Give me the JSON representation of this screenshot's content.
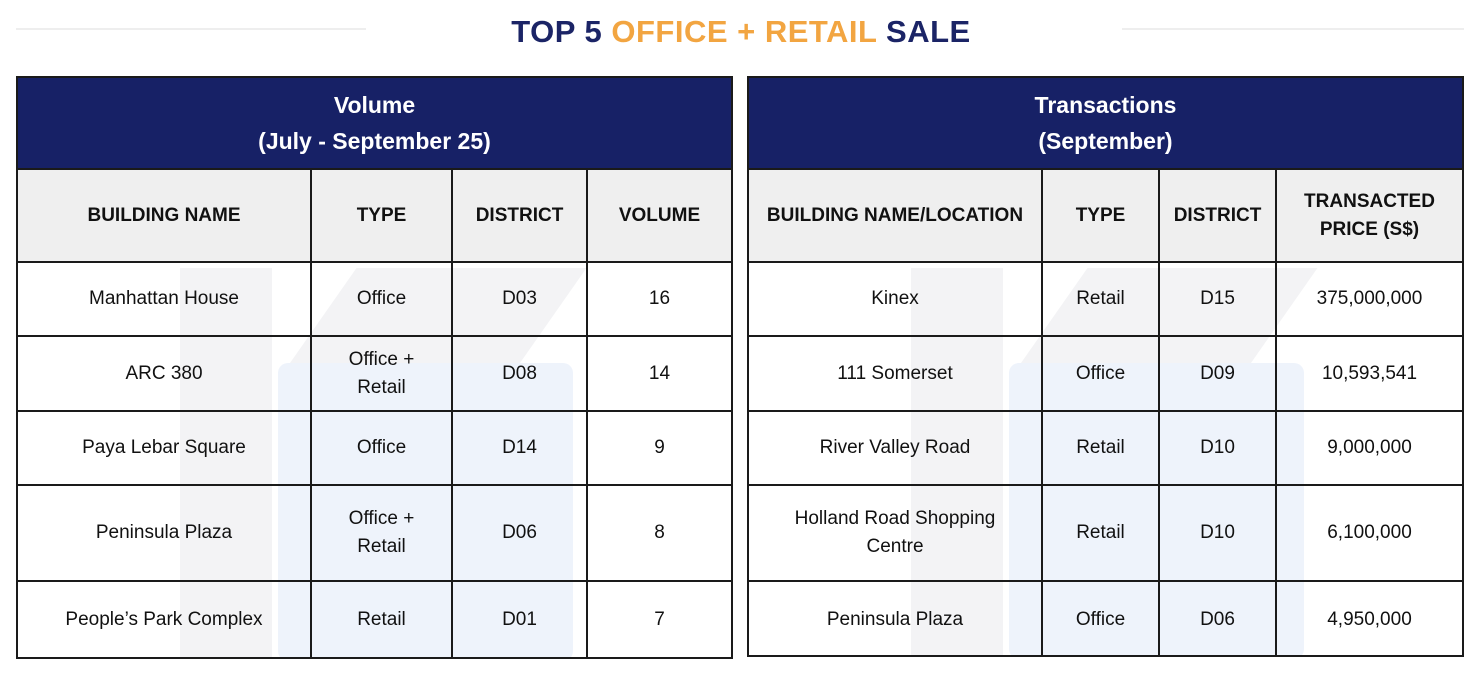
{
  "title": {
    "part1": "TOP 5 ",
    "part2": "OFFICE + RETAIL",
    "part3": " SALE"
  },
  "colors": {
    "navy": "#1b2466",
    "orange": "#f2a541",
    "header_bg": "#172166"
  },
  "volume_table": {
    "heading_line1": "Volume",
    "heading_line2": "(July - September 25)",
    "columns": [
      "BUILDING NAME",
      "TYPE",
      "DISTRICT",
      "VOLUME"
    ],
    "rows": [
      [
        "Manhattan House",
        "Office",
        "D03",
        "16"
      ],
      [
        "ARC 380",
        "Office + Retail",
        "D08",
        "14"
      ],
      [
        "Paya Lebar Square",
        "Office",
        "D14",
        "9"
      ],
      [
        "Peninsula Plaza",
        "Office + Retail",
        "D06",
        "8"
      ],
      [
        "People’s Park Complex",
        "Retail",
        "D01",
        "7"
      ]
    ]
  },
  "transactions_table": {
    "heading_line1": "Transactions",
    "heading_line2": "(September)",
    "columns": [
      "BUILDING NAME/LOCATION",
      "TYPE",
      "DISTRICT",
      "TRANSACTED PRICE (S$)"
    ],
    "rows": [
      [
        "Kinex",
        "Retail",
        "D15",
        "375,000,000"
      ],
      [
        "111 Somerset",
        "Office",
        "D09",
        "10,593,541"
      ],
      [
        "River Valley Road",
        "Retail",
        "D10",
        "9,000,000"
      ],
      [
        "Holland Road Shopping Centre",
        "Retail",
        "D10",
        "6,100,000"
      ],
      [
        "Peninsula Plaza",
        "Office",
        "D06",
        "4,950,000"
      ]
    ]
  }
}
